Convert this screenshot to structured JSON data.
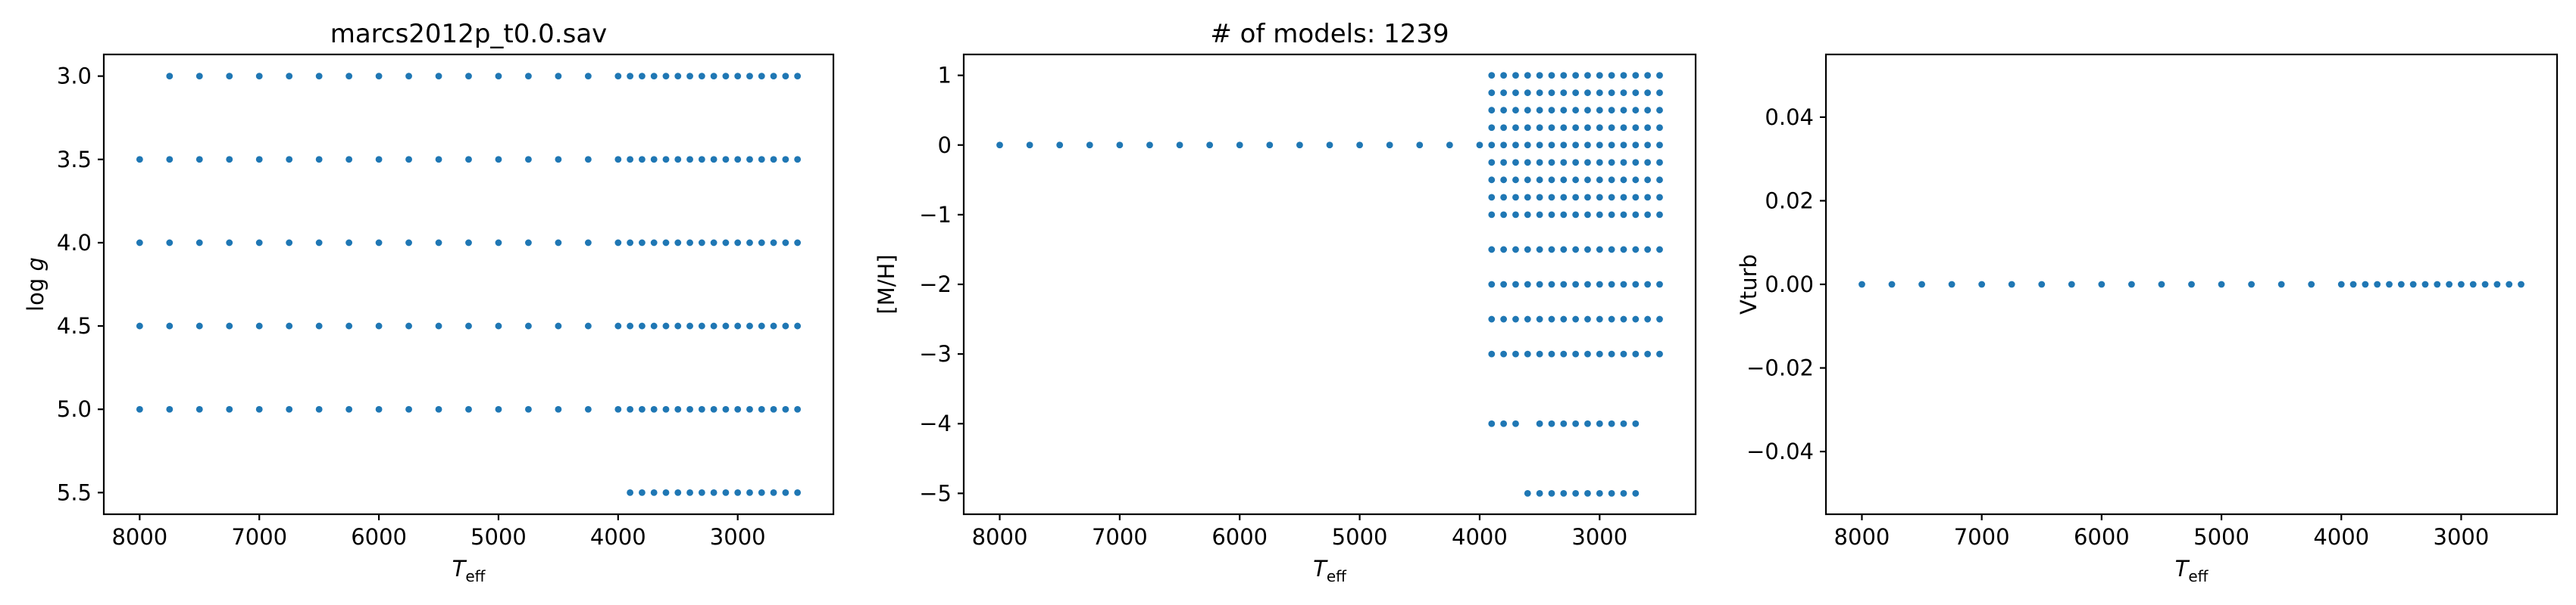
{
  "colors": {
    "marker": "#1f77b4",
    "axes": "#000000",
    "background": "#ffffff"
  },
  "chart_data": [
    {
      "type": "scatter",
      "title": "marcs2012p_t0.0.sav",
      "xlabel_main": "T",
      "xlabel_sub": "eff",
      "ylabel_main": "log ",
      "ylabel_italic": "g",
      "xlim": [
        8300,
        2200
      ],
      "ylim": [
        5.63,
        2.87
      ],
      "xticks": [
        8000,
        7000,
        6000,
        5000,
        4000,
        3000
      ],
      "yticks": [
        3.0,
        3.5,
        4.0,
        4.5,
        5.0,
        5.5
      ],
      "ytick_labels": [
        "3.0",
        "3.5",
        "4.0",
        "4.5",
        "5.0",
        "5.5"
      ],
      "grid": false,
      "rows": [
        {
          "y": 3.0,
          "x": [
            7750,
            7500,
            7250,
            7000,
            6750,
            6500,
            6250,
            6000,
            5750,
            5500,
            5250,
            5000,
            4750,
            4500,
            4250,
            4000,
            3900,
            3800,
            3700,
            3600,
            3500,
            3400,
            3300,
            3200,
            3100,
            3000,
            2900,
            2800,
            2700,
            2600,
            2500
          ]
        },
        {
          "y": 3.5,
          "x": [
            8000,
            7750,
            7500,
            7250,
            7000,
            6750,
            6500,
            6250,
            6000,
            5750,
            5500,
            5250,
            5000,
            4750,
            4500,
            4250,
            4000,
            3900,
            3800,
            3700,
            3600,
            3500,
            3400,
            3300,
            3200,
            3100,
            3000,
            2900,
            2800,
            2700,
            2600,
            2500
          ]
        },
        {
          "y": 4.0,
          "x": [
            8000,
            7750,
            7500,
            7250,
            7000,
            6750,
            6500,
            6250,
            6000,
            5750,
            5500,
            5250,
            5000,
            4750,
            4500,
            4250,
            4000,
            3900,
            3800,
            3700,
            3600,
            3500,
            3400,
            3300,
            3200,
            3100,
            3000,
            2900,
            2800,
            2700,
            2600,
            2500
          ]
        },
        {
          "y": 4.5,
          "x": [
            8000,
            7750,
            7500,
            7250,
            7000,
            6750,
            6500,
            6250,
            6000,
            5750,
            5500,
            5250,
            5000,
            4750,
            4500,
            4250,
            4000,
            3900,
            3800,
            3700,
            3600,
            3500,
            3400,
            3300,
            3200,
            3100,
            3000,
            2900,
            2800,
            2700,
            2600,
            2500
          ]
        },
        {
          "y": 5.0,
          "x": [
            8000,
            7750,
            7500,
            7250,
            7000,
            6750,
            6500,
            6250,
            6000,
            5750,
            5500,
            5250,
            5000,
            4750,
            4500,
            4250,
            4000,
            3900,
            3800,
            3700,
            3600,
            3500,
            3400,
            3300,
            3200,
            3100,
            3000,
            2900,
            2800,
            2700,
            2600,
            2500
          ]
        },
        {
          "y": 5.5,
          "x": [
            3900,
            3800,
            3700,
            3600,
            3500,
            3400,
            3300,
            3200,
            3100,
            3000,
            2900,
            2800,
            2700,
            2600,
            2500
          ]
        }
      ]
    },
    {
      "type": "scatter",
      "title": "# of models: 1239",
      "xlabel_main": "T",
      "xlabel_sub": "eff",
      "ylabel_main": "[M/H]",
      "ylabel_italic": "",
      "xlim": [
        8300,
        2200
      ],
      "ylim": [
        -5.3,
        1.3
      ],
      "xticks": [
        8000,
        7000,
        6000,
        5000,
        4000,
        3000
      ],
      "yticks": [
        1,
        0,
        -1,
        -2,
        -3,
        -4,
        -5
      ],
      "ytick_labels": [
        "1",
        "0",
        "−1",
        "−2",
        "−3",
        "−4",
        "−5"
      ],
      "grid": false,
      "rows": [
        {
          "y": 1.0,
          "x": [
            3900,
            3800,
            3700,
            3600,
            3500,
            3400,
            3300,
            3200,
            3100,
            3000,
            2900,
            2800,
            2700,
            2600,
            2500
          ]
        },
        {
          "y": 0.75,
          "x": [
            3900,
            3800,
            3700,
            3600,
            3500,
            3400,
            3300,
            3200,
            3100,
            3000,
            2900,
            2800,
            2700,
            2600,
            2500
          ]
        },
        {
          "y": 0.5,
          "x": [
            3900,
            3800,
            3700,
            3600,
            3500,
            3400,
            3300,
            3200,
            3100,
            3000,
            2900,
            2800,
            2700,
            2600,
            2500
          ]
        },
        {
          "y": 0.25,
          "x": [
            3900,
            3800,
            3700,
            3600,
            3500,
            3400,
            3300,
            3200,
            3100,
            3000,
            2900,
            2800,
            2700,
            2600,
            2500
          ]
        },
        {
          "y": 0.0,
          "x": [
            8000,
            7750,
            7500,
            7250,
            7000,
            6750,
            6500,
            6250,
            6000,
            5750,
            5500,
            5250,
            5000,
            4750,
            4500,
            4250,
            4000,
            3900,
            3800,
            3700,
            3600,
            3500,
            3400,
            3300,
            3200,
            3100,
            3000,
            2900,
            2800,
            2700,
            2600,
            2500
          ]
        },
        {
          "y": -0.25,
          "x": [
            3900,
            3800,
            3700,
            3600,
            3500,
            3400,
            3300,
            3200,
            3100,
            3000,
            2900,
            2800,
            2700,
            2600,
            2500
          ]
        },
        {
          "y": -0.5,
          "x": [
            3900,
            3800,
            3700,
            3600,
            3500,
            3400,
            3300,
            3200,
            3100,
            3000,
            2900,
            2800,
            2700,
            2600,
            2500
          ]
        },
        {
          "y": -0.75,
          "x": [
            3900,
            3800,
            3700,
            3600,
            3500,
            3400,
            3300,
            3200,
            3100,
            3000,
            2900,
            2800,
            2700,
            2600,
            2500
          ]
        },
        {
          "y": -1.0,
          "x": [
            3900,
            3800,
            3700,
            3600,
            3500,
            3400,
            3300,
            3200,
            3100,
            3000,
            2900,
            2800,
            2700,
            2600,
            2500
          ]
        },
        {
          "y": -1.5,
          "x": [
            3900,
            3800,
            3700,
            3600,
            3500,
            3400,
            3300,
            3200,
            3100,
            3000,
            2900,
            2800,
            2700,
            2600,
            2500
          ]
        },
        {
          "y": -2.0,
          "x": [
            3900,
            3800,
            3700,
            3600,
            3500,
            3400,
            3300,
            3200,
            3100,
            3000,
            2900,
            2800,
            2700,
            2600,
            2500
          ]
        },
        {
          "y": -2.5,
          "x": [
            3900,
            3800,
            3700,
            3600,
            3500,
            3400,
            3300,
            3200,
            3100,
            3000,
            2900,
            2800,
            2700,
            2600,
            2500
          ]
        },
        {
          "y": -3.0,
          "x": [
            3900,
            3800,
            3700,
            3600,
            3500,
            3400,
            3300,
            3200,
            3100,
            3000,
            2900,
            2800,
            2700,
            2600,
            2500
          ]
        },
        {
          "y": -4.0,
          "x": [
            3900,
            3800,
            3700,
            3500,
            3400,
            3300,
            3200,
            3100,
            3000,
            2900,
            2800,
            2700
          ]
        },
        {
          "y": -5.0,
          "x": [
            3600,
            3500,
            3400,
            3300,
            3200,
            3100,
            3000,
            2900,
            2800,
            2700
          ]
        }
      ]
    },
    {
      "type": "scatter",
      "title": "",
      "xlabel_main": "T",
      "xlabel_sub": "eff",
      "ylabel_main": "Vturb",
      "ylabel_italic": "",
      "xlim": [
        8300,
        2200
      ],
      "ylim": [
        -0.055,
        0.055
      ],
      "xticks": [
        8000,
        7000,
        6000,
        5000,
        4000,
        3000
      ],
      "yticks": [
        0.04,
        0.02,
        0.0,
        -0.02,
        -0.04
      ],
      "ytick_labels": [
        "0.04",
        "0.02",
        "0.00",
        "−0.02",
        "−0.04"
      ],
      "grid": false,
      "rows": [
        {
          "y": 0.0,
          "x": [
            8000,
            7750,
            7500,
            7250,
            7000,
            6750,
            6500,
            6250,
            6000,
            5750,
            5500,
            5250,
            5000,
            4750,
            4500,
            4250,
            4000,
            3900,
            3800,
            3700,
            3600,
            3500,
            3400,
            3300,
            3200,
            3100,
            3000,
            2900,
            2800,
            2700,
            2600,
            2500
          ]
        }
      ]
    }
  ]
}
